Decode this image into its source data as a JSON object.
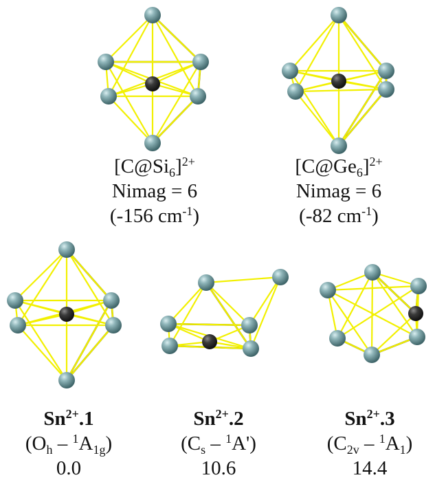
{
  "colors": {
    "bond": "#f2f000",
    "bond_shadow": "#6b6a00",
    "atom_ring": "#5d8a8e",
    "atom_center": "#2a2a2a"
  },
  "top_left": {
    "formula_main": "[C@Si",
    "formula_sub": "6",
    "formula_close": "]",
    "formula_sup": "2+",
    "nimag": "Nimag = 6",
    "freq_open": "(-156 cm",
    "freq_sup": "-1",
    "freq_close": ")"
  },
  "top_right": {
    "formula_main": "[C@Ge",
    "formula_sub": "6",
    "formula_close": "]",
    "formula_sup": "2+",
    "nimag": "Nimag = 6",
    "freq_open": "(-82 cm",
    "freq_sup": "-1",
    "freq_close": ")"
  },
  "bottom": [
    {
      "name_base": "Sn",
      "name_sup": "2+",
      "name_suffix": ".1",
      "sym_open": "(O",
      "sym_sub": "h",
      "sym_mid": " – ",
      "sym_sup": "1",
      "sym_term": "A",
      "sym_term_sub": "1g",
      "sym_term_post": "",
      "sym_close": ")",
      "energy": "0.0"
    },
    {
      "name_base": "Sn",
      "name_sup": "2+",
      "name_suffix": ".2",
      "sym_open": "(C",
      "sym_sub": "s",
      "sym_mid": " – ",
      "sym_sup": "1",
      "sym_term": "A'",
      "sym_term_sub": "",
      "sym_term_post": "",
      "sym_close": ")",
      "energy": "10.6"
    },
    {
      "name_base": "Sn",
      "name_sup": "2+",
      "name_suffix": ".3",
      "sym_open": "(C",
      "sym_sub": "2v",
      "sym_mid": " – ",
      "sym_sup": "1",
      "sym_term": "A",
      "sym_term_sub": "1",
      "sym_term_post": "",
      "sym_close": ")",
      "energy": "14.4"
    }
  ]
}
